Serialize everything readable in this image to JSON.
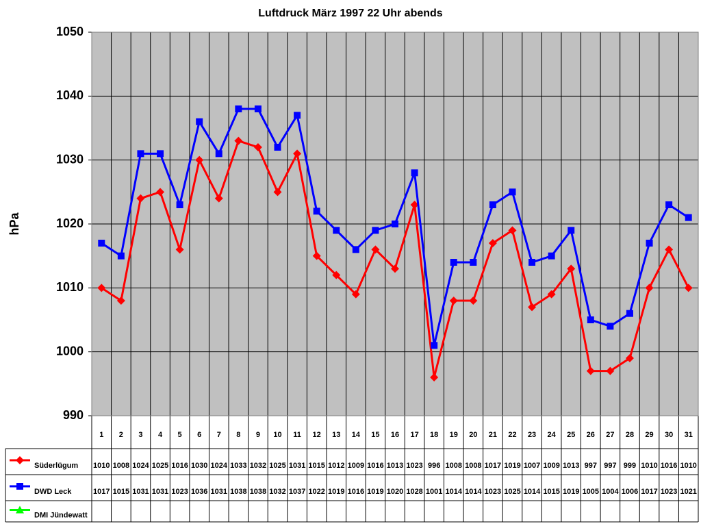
{
  "chart_data": {
    "type": "line",
    "title": "Luftdruck März 1997 22 Uhr abends",
    "y_label": "hPa",
    "categories": [
      "1",
      "2",
      "3",
      "4",
      "5",
      "6",
      "7",
      "8",
      "9",
      "10",
      "11",
      "12",
      "13",
      "14",
      "15",
      "16",
      "17",
      "18",
      "19",
      "20",
      "21",
      "22",
      "23",
      "24",
      "25",
      "26",
      "27",
      "28",
      "29",
      "30",
      "31"
    ],
    "series": [
      {
        "name": "Süderlügum",
        "color": "#ff0000",
        "marker": "diamond",
        "values": [
          1010,
          1008,
          1024,
          1025,
          1016,
          1030,
          1024,
          1033,
          1032,
          1025,
          1031,
          1015,
          1012,
          1009,
          1016,
          1013,
          1023,
          996,
          1008,
          1008,
          1017,
          1019,
          1007,
          1009,
          1013,
          997,
          997,
          999,
          1010,
          1016,
          1010
        ]
      },
      {
        "name": "DWD Leck",
        "color": "#0000ff",
        "marker": "square",
        "values": [
          1017,
          1015,
          1031,
          1031,
          1023,
          1036,
          1031,
          1038,
          1038,
          1032,
          1037,
          1022,
          1019,
          1016,
          1019,
          1020,
          1028,
          1001,
          1014,
          1014,
          1023,
          1025,
          1014,
          1015,
          1019,
          1005,
          1004,
          1006,
          1017,
          1023,
          1021
        ]
      },
      {
        "name": "DMI Jündewatt",
        "color": "#00ff00",
        "marker": "triangle",
        "values": [
          null,
          null,
          null,
          null,
          null,
          null,
          null,
          null,
          null,
          null,
          null,
          null,
          null,
          null,
          null,
          null,
          null,
          null,
          null,
          null,
          null,
          null,
          null,
          null,
          null,
          null,
          null,
          null,
          null,
          null,
          null
        ]
      }
    ],
    "ylim": [
      990,
      1050
    ],
    "yticks": [
      990,
      1000,
      1010,
      1020,
      1030,
      1040,
      1050
    ],
    "grid": true,
    "data_table": true
  }
}
